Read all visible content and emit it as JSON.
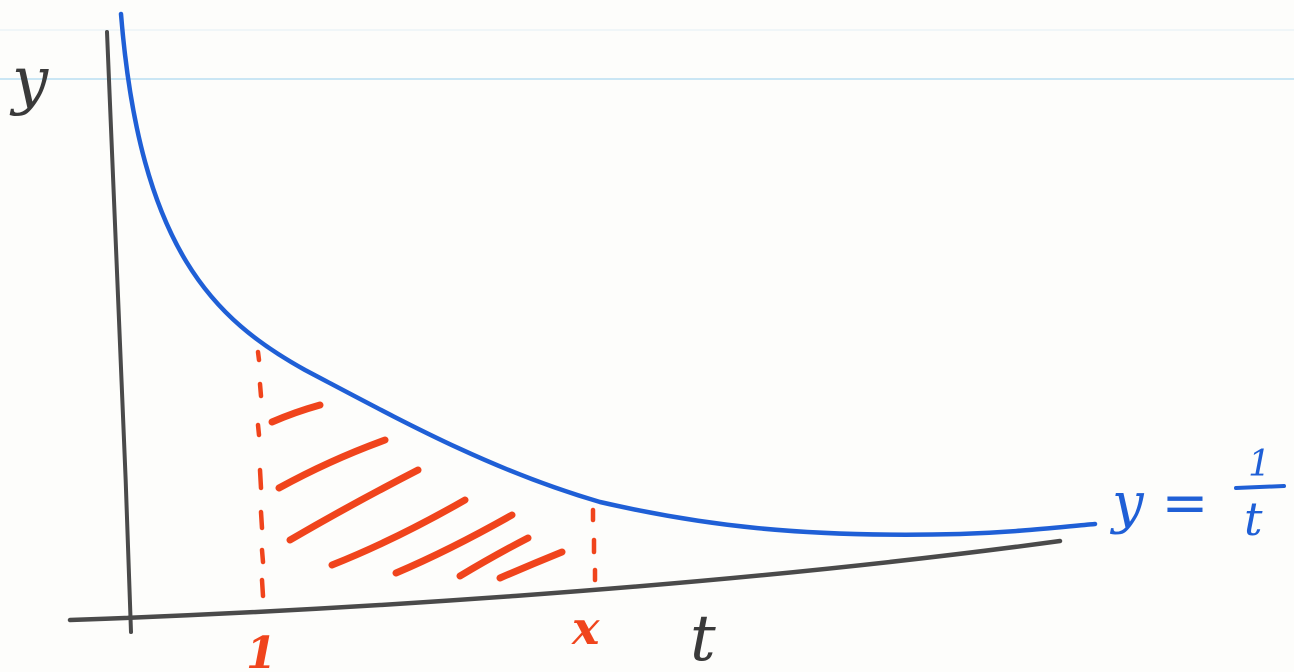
{
  "labels": {
    "y_axis": "y",
    "x_axis": "t",
    "tick_one": "1",
    "tick_x": "x",
    "curve_lhs": "y =",
    "curve_num": "1",
    "curve_den": "t"
  },
  "colors": {
    "paper": "#fdfdfb",
    "rule_line": "#b9dff2",
    "axes": "#4a4a4a",
    "curve": "#1f5fd6",
    "shade": "#f0441c"
  }
}
